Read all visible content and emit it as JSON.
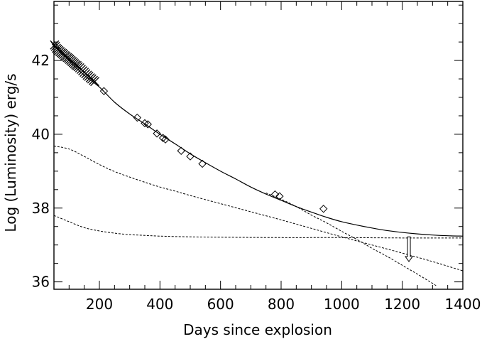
{
  "chart_data": {
    "type": "scatter",
    "title": "",
    "xlabel": "Days since explosion",
    "ylabel": "Log (Luminosity) erg/s",
    "xlim": [
      50,
      1400
    ],
    "ylim": [
      35.8,
      43.6
    ],
    "x_ticks": [
      200,
      400,
      600,
      800,
      1000,
      1200,
      1400
    ],
    "y_ticks": [
      36,
      38,
      40,
      42
    ],
    "grid": false,
    "legend": "none",
    "series": [
      {
        "marker": "cross",
        "points": [
          [
            52,
            42.42
          ],
          [
            55,
            42.38
          ],
          [
            58,
            42.33
          ],
          [
            62,
            42.3
          ],
          [
            66,
            42.27
          ],
          [
            70,
            42.24
          ],
          [
            74,
            42.21
          ],
          [
            78,
            42.19
          ],
          [
            82,
            42.16
          ],
          [
            86,
            42.13
          ],
          [
            90,
            42.11
          ],
          [
            94,
            42.08
          ],
          [
            98,
            42.06
          ],
          [
            102,
            42.03
          ],
          [
            106,
            42.0
          ],
          [
            110,
            41.97
          ],
          [
            114,
            41.94
          ],
          [
            118,
            41.91
          ],
          [
            122,
            41.88
          ],
          [
            126,
            41.86
          ],
          [
            130,
            41.83
          ],
          [
            135,
            41.8
          ],
          [
            140,
            41.76
          ],
          [
            145,
            41.72
          ],
          [
            150,
            41.68
          ],
          [
            155,
            41.64
          ],
          [
            160,
            41.6
          ],
          [
            165,
            41.57
          ],
          [
            170,
            41.53
          ],
          [
            175,
            41.5
          ],
          [
            180,
            41.46
          ],
          [
            185,
            41.43
          ]
        ]
      },
      {
        "marker": "diamond",
        "points": [
          [
            215,
            41.17
          ],
          [
            325,
            40.45
          ],
          [
            350,
            40.3
          ],
          [
            360,
            40.27
          ],
          [
            390,
            40.02
          ],
          [
            410,
            39.9
          ],
          [
            418,
            39.86
          ],
          [
            470,
            39.55
          ],
          [
            500,
            39.4
          ],
          [
            540,
            39.2
          ],
          [
            780,
            38.37
          ],
          [
            795,
            38.32
          ],
          [
            940,
            37.98
          ]
        ]
      },
      {
        "marker": "upper-limit-arrow",
        "points": [
          [
            1222,
            37.22
          ]
        ]
      }
    ],
    "curves": [
      {
        "style": "solid",
        "x": [
          50,
          100,
          150,
          200,
          250,
          300,
          350,
          400,
          450,
          500,
          550,
          600,
          650,
          700,
          750,
          800,
          850,
          900,
          950,
          1000,
          1050,
          1100,
          1150,
          1200,
          1250,
          1300,
          1350,
          1400
        ],
        "y": [
          42.52,
          42.0,
          41.6,
          41.28,
          40.87,
          40.55,
          40.28,
          40.0,
          39.74,
          39.47,
          39.23,
          39.0,
          38.79,
          38.57,
          38.38,
          38.21,
          38.04,
          37.89,
          37.75,
          37.63,
          37.54,
          37.46,
          37.39,
          37.34,
          37.3,
          37.27,
          37.25,
          37.24
        ]
      },
      {
        "style": "dashed",
        "x": [
          750,
          800,
          850,
          900,
          950,
          1000,
          1050,
          1100,
          1150,
          1200,
          1250,
          1300,
          1315
        ],
        "y": [
          38.41,
          38.24,
          38.04,
          37.81,
          37.6,
          37.37,
          37.15,
          36.91,
          36.69,
          36.45,
          36.21,
          35.96,
          35.88
        ]
      },
      {
        "style": "dashed",
        "x": [
          50,
          100,
          150,
          200,
          250,
          300,
          350,
          400,
          450,
          500,
          600,
          700,
          800,
          900,
          1000,
          1100,
          1200,
          1300,
          1400
        ],
        "y": [
          39.68,
          39.6,
          39.4,
          39.18,
          38.99,
          38.84,
          38.7,
          38.57,
          38.46,
          38.34,
          38.12,
          37.9,
          37.68,
          37.45,
          37.22,
          37.0,
          36.78,
          36.55,
          36.3
        ]
      },
      {
        "style": "dashed",
        "x": [
          50,
          100,
          150,
          200,
          250,
          300,
          350,
          400,
          500,
          600,
          800,
          1000,
          1200,
          1400
        ],
        "y": [
          37.8,
          37.63,
          37.47,
          37.38,
          37.32,
          37.28,
          37.26,
          37.24,
          37.22,
          37.21,
          37.2,
          37.2,
          37.19,
          37.19
        ]
      }
    ]
  }
}
